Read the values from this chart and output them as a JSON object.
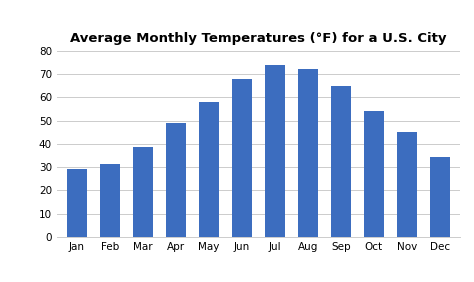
{
  "title": "Average Monthly Temperatures (°F) for a U.S. City",
  "months": [
    "Jan",
    "Feb",
    "Mar",
    "Apr",
    "May",
    "Jun",
    "Jul",
    "Aug",
    "Sep",
    "Oct",
    "Nov",
    "Dec"
  ],
  "values": [
    29,
    31.5,
    38.5,
    49,
    58,
    68,
    74,
    72,
    65,
    54,
    45,
    34.5
  ],
  "bar_color": "#3C6DBF",
  "ylim": [
    0,
    80
  ],
  "yticks": [
    0,
    10,
    20,
    30,
    40,
    50,
    60,
    70,
    80
  ],
  "background_color": "#FFFFFF",
  "grid_color": "#CCCCCC",
  "title_fontsize": 9.5,
  "tick_fontsize": 7.5,
  "bar_width": 0.6
}
